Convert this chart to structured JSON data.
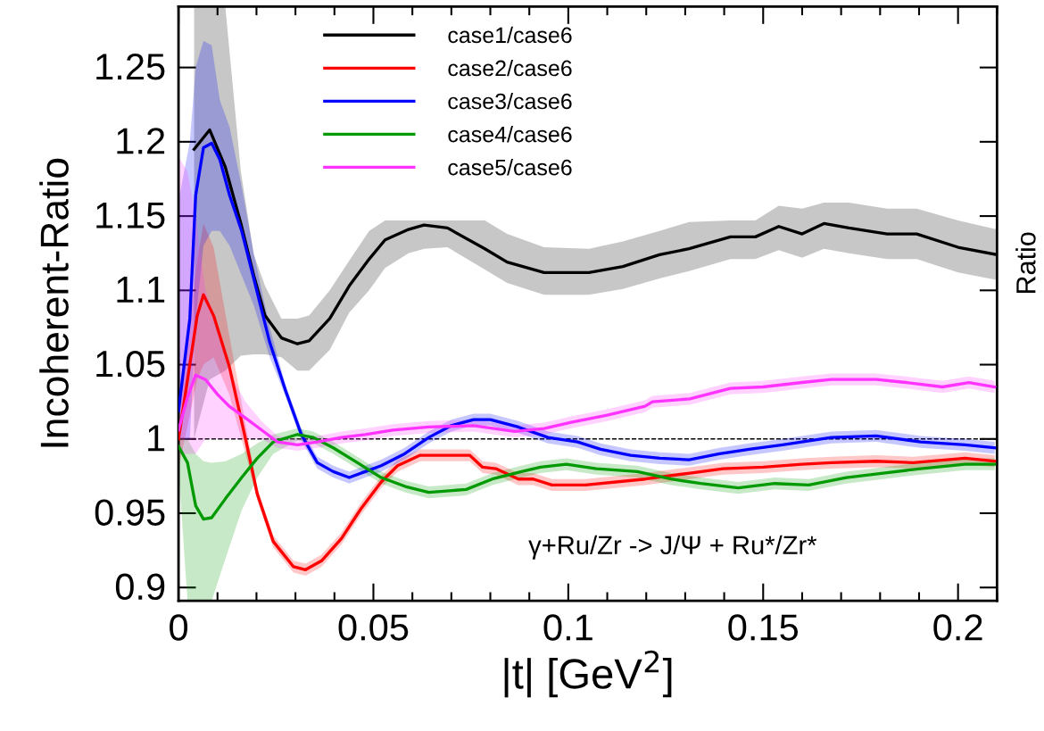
{
  "chart_data": {
    "type": "line",
    "xlabel": "|t| [GeV$^{2}$]",
    "ylabel": "Incoherent-Ratio",
    "y2label": "Ratio",
    "xlim": [
      0,
      0.21
    ],
    "xticks": [
      0,
      0.05,
      0.1,
      0.15,
      0.2
    ],
    "ylim": [
      0.891,
      1.291
    ],
    "yticks": [
      0.9,
      0.95,
      1,
      1.05,
      1.1,
      1.15,
      1.2,
      1.25
    ],
    "grid": false,
    "legend": "top",
    "line_style": "solid",
    "marker": "none",
    "ref_lines": [
      {
        "axis": "y",
        "value": 1,
        "color": "#000000",
        "line_style": "dashed"
      }
    ],
    "annotations": [
      "γ+Ru/Zr -> J/Ψ + Ru*/Zr*"
    ],
    "series": [
      {
        "name": "case1/case6",
        "color": "#000000",
        "x": [
          0.004,
          0.008,
          0.012,
          0.016,
          0.0193,
          0.0222,
          0.0264,
          0.0305,
          0.0335,
          0.0388,
          0.0438,
          0.0489,
          0.053,
          0.059,
          0.063,
          0.069,
          0.0786,
          0.0843,
          0.0938,
          0.1053,
          0.114,
          0.1234,
          0.131,
          0.1416,
          0.148,
          0.154,
          0.16,
          0.1656,
          0.172,
          0.1818,
          0.1894,
          0.2,
          0.21
        ],
        "values": [
          1.195,
          1.208,
          1.183,
          1.145,
          1.11,
          1.083,
          1.068,
          1.064,
          1.066,
          1.081,
          1.103,
          1.121,
          1.134,
          1.141,
          1.144,
          1.142,
          1.128,
          1.119,
          1.112,
          1.112,
          1.116,
          1.124,
          1.128,
          1.136,
          1.136,
          1.143,
          1.138,
          1.145,
          1.142,
          1.138,
          1.138,
          1.129,
          1.124
        ],
        "lower": [
          1.0,
          1.04,
          1.046,
          1.056,
          1.057,
          1.057,
          1.055,
          1.046,
          1.046,
          1.06,
          1.085,
          1.1,
          1.115,
          1.125,
          1.128,
          1.129,
          1.114,
          1.105,
          1.097,
          1.097,
          1.101,
          1.108,
          1.113,
          1.121,
          1.121,
          1.127,
          1.122,
          1.128,
          1.125,
          1.121,
          1.121,
          1.112,
          1.107
        ],
        "upper": [
          1.291,
          1.291,
          1.291,
          1.18,
          1.124,
          1.103,
          1.081,
          1.081,
          1.083,
          1.1,
          1.12,
          1.14,
          1.147,
          1.147,
          1.147,
          1.147,
          1.147,
          1.138,
          1.129,
          1.128,
          1.133,
          1.14,
          1.146,
          1.147,
          1.147,
          1.157,
          1.155,
          1.159,
          1.159,
          1.155,
          1.155,
          1.147,
          1.141
        ]
      },
      {
        "name": "case2/case6",
        "color": "#ff0000",
        "x": [
          0,
          0.0048,
          0.0064,
          0.009,
          0.013,
          0.0172,
          0.0202,
          0.0243,
          0.0295,
          0.0326,
          0.0367,
          0.0418,
          0.0468,
          0.052,
          0.0562,
          0.062,
          0.0683,
          0.0747,
          0.078,
          0.0814,
          0.0872,
          0.091,
          0.0958,
          0.1044,
          0.1197,
          0.1312,
          0.1397,
          0.15,
          0.16,
          0.1675,
          0.179,
          0.1885,
          0.2018,
          0.2094
        ],
        "values": [
          1.0,
          1.083,
          1.097,
          1.083,
          1.049,
          1.0,
          0.963,
          0.931,
          0.914,
          0.912,
          0.918,
          0.933,
          0.953,
          0.971,
          0.982,
          0.989,
          0.989,
          0.989,
          0.981,
          0.98,
          0.973,
          0.973,
          0.969,
          0.969,
          0.973,
          0.977,
          0.98,
          0.981,
          0.983,
          0.984,
          0.985,
          0.984,
          0.987,
          0.985
        ],
        "lower": [
          0.98,
          1.04,
          1.05,
          1.055,
          1.03,
          0.99,
          0.959,
          0.927,
          0.91,
          0.908,
          0.914,
          0.929,
          0.949,
          0.967,
          0.978,
          0.985,
          0.985,
          0.985,
          0.977,
          0.976,
          0.969,
          0.969,
          0.965,
          0.965,
          0.969,
          0.973,
          0.976,
          0.977,
          0.979,
          0.98,
          0.981,
          0.98,
          0.983,
          0.981
        ],
        "upper": [
          1.02,
          1.12,
          1.145,
          1.129,
          1.07,
          1.01,
          0.967,
          0.935,
          0.918,
          0.916,
          0.922,
          0.937,
          0.957,
          0.975,
          0.986,
          0.993,
          0.993,
          0.993,
          0.985,
          0.984,
          0.977,
          0.977,
          0.973,
          0.973,
          0.977,
          0.981,
          0.984,
          0.985,
          0.987,
          0.988,
          0.989,
          0.988,
          0.991,
          0.989
        ]
      },
      {
        "name": "case3/case6",
        "color": "#0000ff",
        "x": [
          0,
          0.0029,
          0.0044,
          0.0064,
          0.0085,
          0.0106,
          0.0131,
          0.0162,
          0.0193,
          0.0234,
          0.0274,
          0.0315,
          0.0356,
          0.0397,
          0.0438,
          0.0479,
          0.052,
          0.058,
          0.0642,
          0.07,
          0.0757,
          0.08,
          0.0872,
          0.0948,
          0.1024,
          0.1083,
          0.116,
          0.1235,
          0.131,
          0.1388,
          0.1464,
          0.155,
          0.1675,
          0.179,
          0.1904,
          0.2018,
          0.2094
        ],
        "values": [
          1.019,
          1.081,
          1.164,
          1.196,
          1.199,
          1.188,
          1.164,
          1.14,
          1.108,
          1.065,
          1.033,
          1.003,
          0.984,
          0.978,
          0.974,
          0.978,
          0.982,
          0.99,
          1.001,
          1.009,
          1.013,
          1.013,
          1.008,
          1.001,
          0.998,
          0.993,
          0.989,
          0.987,
          0.986,
          0.99,
          0.993,
          0.996,
          1.001,
          1.002,
          0.998,
          0.996,
          0.994
        ],
        "lower": [
          1.0,
          1.0,
          1.08,
          1.13,
          1.14,
          1.14,
          1.13,
          1.11,
          1.09,
          1.055,
          1.029,
          0.999,
          0.98,
          0.974,
          0.97,
          0.974,
          0.978,
          0.986,
          0.997,
          1.005,
          1.009,
          1.009,
          1.004,
          0.997,
          0.994,
          0.989,
          0.985,
          0.983,
          0.982,
          0.986,
          0.989,
          0.992,
          0.997,
          0.998,
          0.994,
          0.992,
          0.99
        ],
        "upper": [
          1.16,
          1.2,
          1.25,
          1.268,
          1.265,
          1.228,
          1.21,
          1.17,
          1.125,
          1.075,
          1.037,
          1.007,
          0.988,
          0.982,
          0.978,
          0.982,
          0.986,
          0.994,
          1.005,
          1.013,
          1.017,
          1.017,
          1.012,
          1.005,
          1.002,
          0.997,
          0.993,
          0.991,
          0.99,
          0.994,
          0.997,
          1.0,
          1.005,
          1.006,
          1.002,
          1.0,
          0.998
        ]
      },
      {
        "name": "case4/case6",
        "color": "#009a00",
        "x": [
          0,
          0.0023,
          0.0044,
          0.0064,
          0.0085,
          0.0121,
          0.0162,
          0.0202,
          0.0243,
          0.0305,
          0.0346,
          0.0397,
          0.0459,
          0.052,
          0.0582,
          0.0642,
          0.0738,
          0.0805,
          0.088,
          0.0929,
          0.0995,
          0.1072,
          0.1177,
          0.1264,
          0.134,
          0.1436,
          0.153,
          0.1617,
          0.1713,
          0.1808,
          0.1904,
          0.2018,
          0.2094
        ],
        "values": [
          0.995,
          0.984,
          0.955,
          0.946,
          0.947,
          0.96,
          0.974,
          0.987,
          0.998,
          1.003,
          1.001,
          0.994,
          0.984,
          0.974,
          0.968,
          0.964,
          0.966,
          0.973,
          0.978,
          0.981,
          0.983,
          0.98,
          0.978,
          0.973,
          0.97,
          0.967,
          0.97,
          0.969,
          0.974,
          0.977,
          0.98,
          0.983,
          0.983
        ],
        "lower": [
          0.98,
          0.891,
          0.891,
          0.891,
          0.891,
          0.92,
          0.952,
          0.974,
          0.99,
          0.999,
          0.997,
          0.99,
          0.98,
          0.97,
          0.964,
          0.96,
          0.962,
          0.969,
          0.974,
          0.977,
          0.979,
          0.976,
          0.974,
          0.969,
          0.966,
          0.963,
          0.966,
          0.965,
          0.97,
          0.973,
          0.976,
          0.979,
          0.979
        ],
        "upper": [
          1.0,
          1.0,
          0.99,
          0.985,
          0.984,
          0.985,
          0.99,
          0.997,
          1.003,
          1.007,
          1.005,
          0.998,
          0.988,
          0.978,
          0.972,
          0.968,
          0.97,
          0.977,
          0.982,
          0.985,
          0.987,
          0.984,
          0.982,
          0.977,
          0.974,
          0.971,
          0.974,
          0.973,
          0.978,
          0.981,
          0.984,
          0.987,
          0.987
        ]
      },
      {
        "name": "case5/case6",
        "color": "#ff33ff",
        "x": [
          0,
          0.0023,
          0.0044,
          0.0069,
          0.01,
          0.013,
          0.0172,
          0.0213,
          0.0254,
          0.0305,
          0.0356,
          0.0418,
          0.0479,
          0.055,
          0.0642,
          0.0757,
          0.0862,
          0.0938,
          0.1005,
          0.11,
          0.1197,
          0.1216,
          0.1312,
          0.1416,
          0.15,
          0.16,
          0.1675,
          0.179,
          0.1866,
          0.196,
          0.2028,
          0.2094
        ],
        "values": [
          1.006,
          1.028,
          1.043,
          1.04,
          1.03,
          1.022,
          1.014,
          1.006,
          0.998,
          0.996,
          0.998,
          1.001,
          1.003,
          1.006,
          1.008,
          1.009,
          1.005,
          1.007,
          1.011,
          1.016,
          1.022,
          1.025,
          1.027,
          1.034,
          1.035,
          1.038,
          1.04,
          1.04,
          1.038,
          1.035,
          1.038,
          1.035
        ],
        "lower": [
          0.99,
          0.99,
          0.99,
          1.0,
          1.0,
          1.0,
          1.0,
          1.0,
          0.994,
          0.992,
          0.994,
          0.997,
          0.999,
          1.002,
          1.004,
          1.005,
          1.001,
          1.003,
          1.007,
          1.012,
          1.018,
          1.021,
          1.023,
          1.03,
          1.031,
          1.034,
          1.036,
          1.036,
          1.034,
          1.031,
          1.034,
          1.031
        ],
        "upper": [
          1.19,
          1.18,
          1.15,
          1.1,
          1.075,
          1.045,
          1.025,
          1.012,
          1.002,
          1.0,
          1.002,
          1.005,
          1.007,
          1.01,
          1.012,
          1.013,
          1.009,
          1.011,
          1.015,
          1.02,
          1.026,
          1.029,
          1.031,
          1.038,
          1.039,
          1.042,
          1.044,
          1.044,
          1.042,
          1.039,
          1.042,
          1.039
        ]
      }
    ]
  }
}
